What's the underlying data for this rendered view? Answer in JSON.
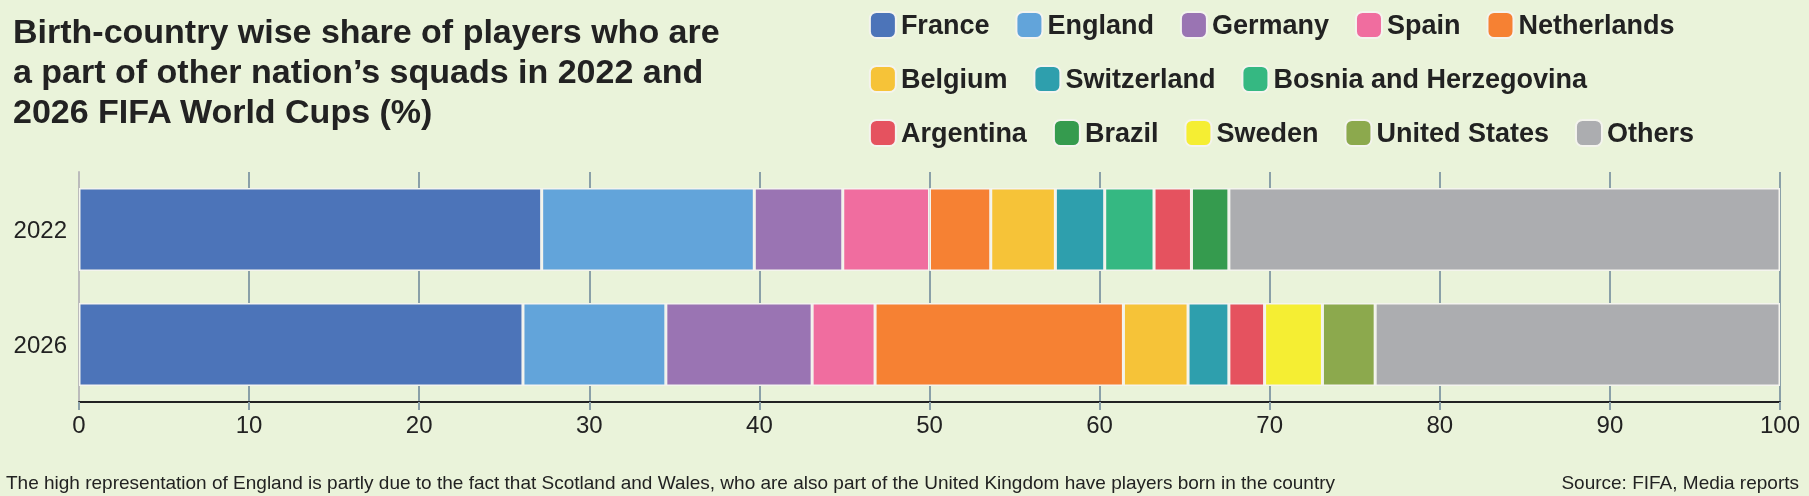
{
  "chart_data": {
    "type": "bar",
    "orientation": "horizontal",
    "stacked": true,
    "title": "Birth-country wise share of players who are a part of other nation’s squads in 2022 and 2026 FIFA World Cups (%)",
    "categories": [
      "2022",
      "2026"
    ],
    "series": [
      {
        "name": "France",
        "color": "#4c74b9",
        "values": [
          27.2,
          26.1
        ]
      },
      {
        "name": "England",
        "color": "#62a4da",
        "values": [
          12.5,
          8.4
        ]
      },
      {
        "name": "Germany",
        "color": "#9a74b3",
        "values": [
          5.2,
          8.6
        ]
      },
      {
        "name": "Spain",
        "color": "#f06d9f",
        "values": [
          5.1,
          3.7
        ]
      },
      {
        "name": "Netherlands",
        "color": "#f68133",
        "values": [
          3.6,
          14.6
        ]
      },
      {
        "name": "Belgium",
        "color": "#f6c338",
        "values": [
          3.8,
          3.8
        ]
      },
      {
        "name": "Switzerland",
        "color": "#2e9fad",
        "values": [
          2.9,
          2.4
        ]
      },
      {
        "name": "Bosnia and Herzegovina",
        "color": "#35b882",
        "values": [
          2.9,
          null
        ]
      },
      {
        "name": "Argentina",
        "color": "#e5525f",
        "values": [
          2.2,
          2.1
        ]
      },
      {
        "name": "Brazil",
        "color": "#359b4e",
        "values": [
          2.2,
          null
        ]
      },
      {
        "name": "Sweden",
        "color": "#f5ee33",
        "values": [
          null,
          3.4
        ]
      },
      {
        "name": "United States",
        "color": "#8ca94d",
        "values": [
          null,
          3.1
        ]
      },
      {
        "name": "Others",
        "color": "#acadb0",
        "values": [
          32.4,
          23.8
        ]
      }
    ],
    "xlim": [
      0,
      100
    ],
    "xticks": [
      0,
      10,
      20,
      30,
      40,
      50,
      60,
      70,
      80,
      90,
      100
    ],
    "grid": "x",
    "legend": "top right",
    "annotations": [
      "The high representation of England is partly due to the fact that Scotland and Wales, who are also part of the United Kingdom have players born in the country",
      "Source: FIFA, Media reports"
    ]
  }
}
